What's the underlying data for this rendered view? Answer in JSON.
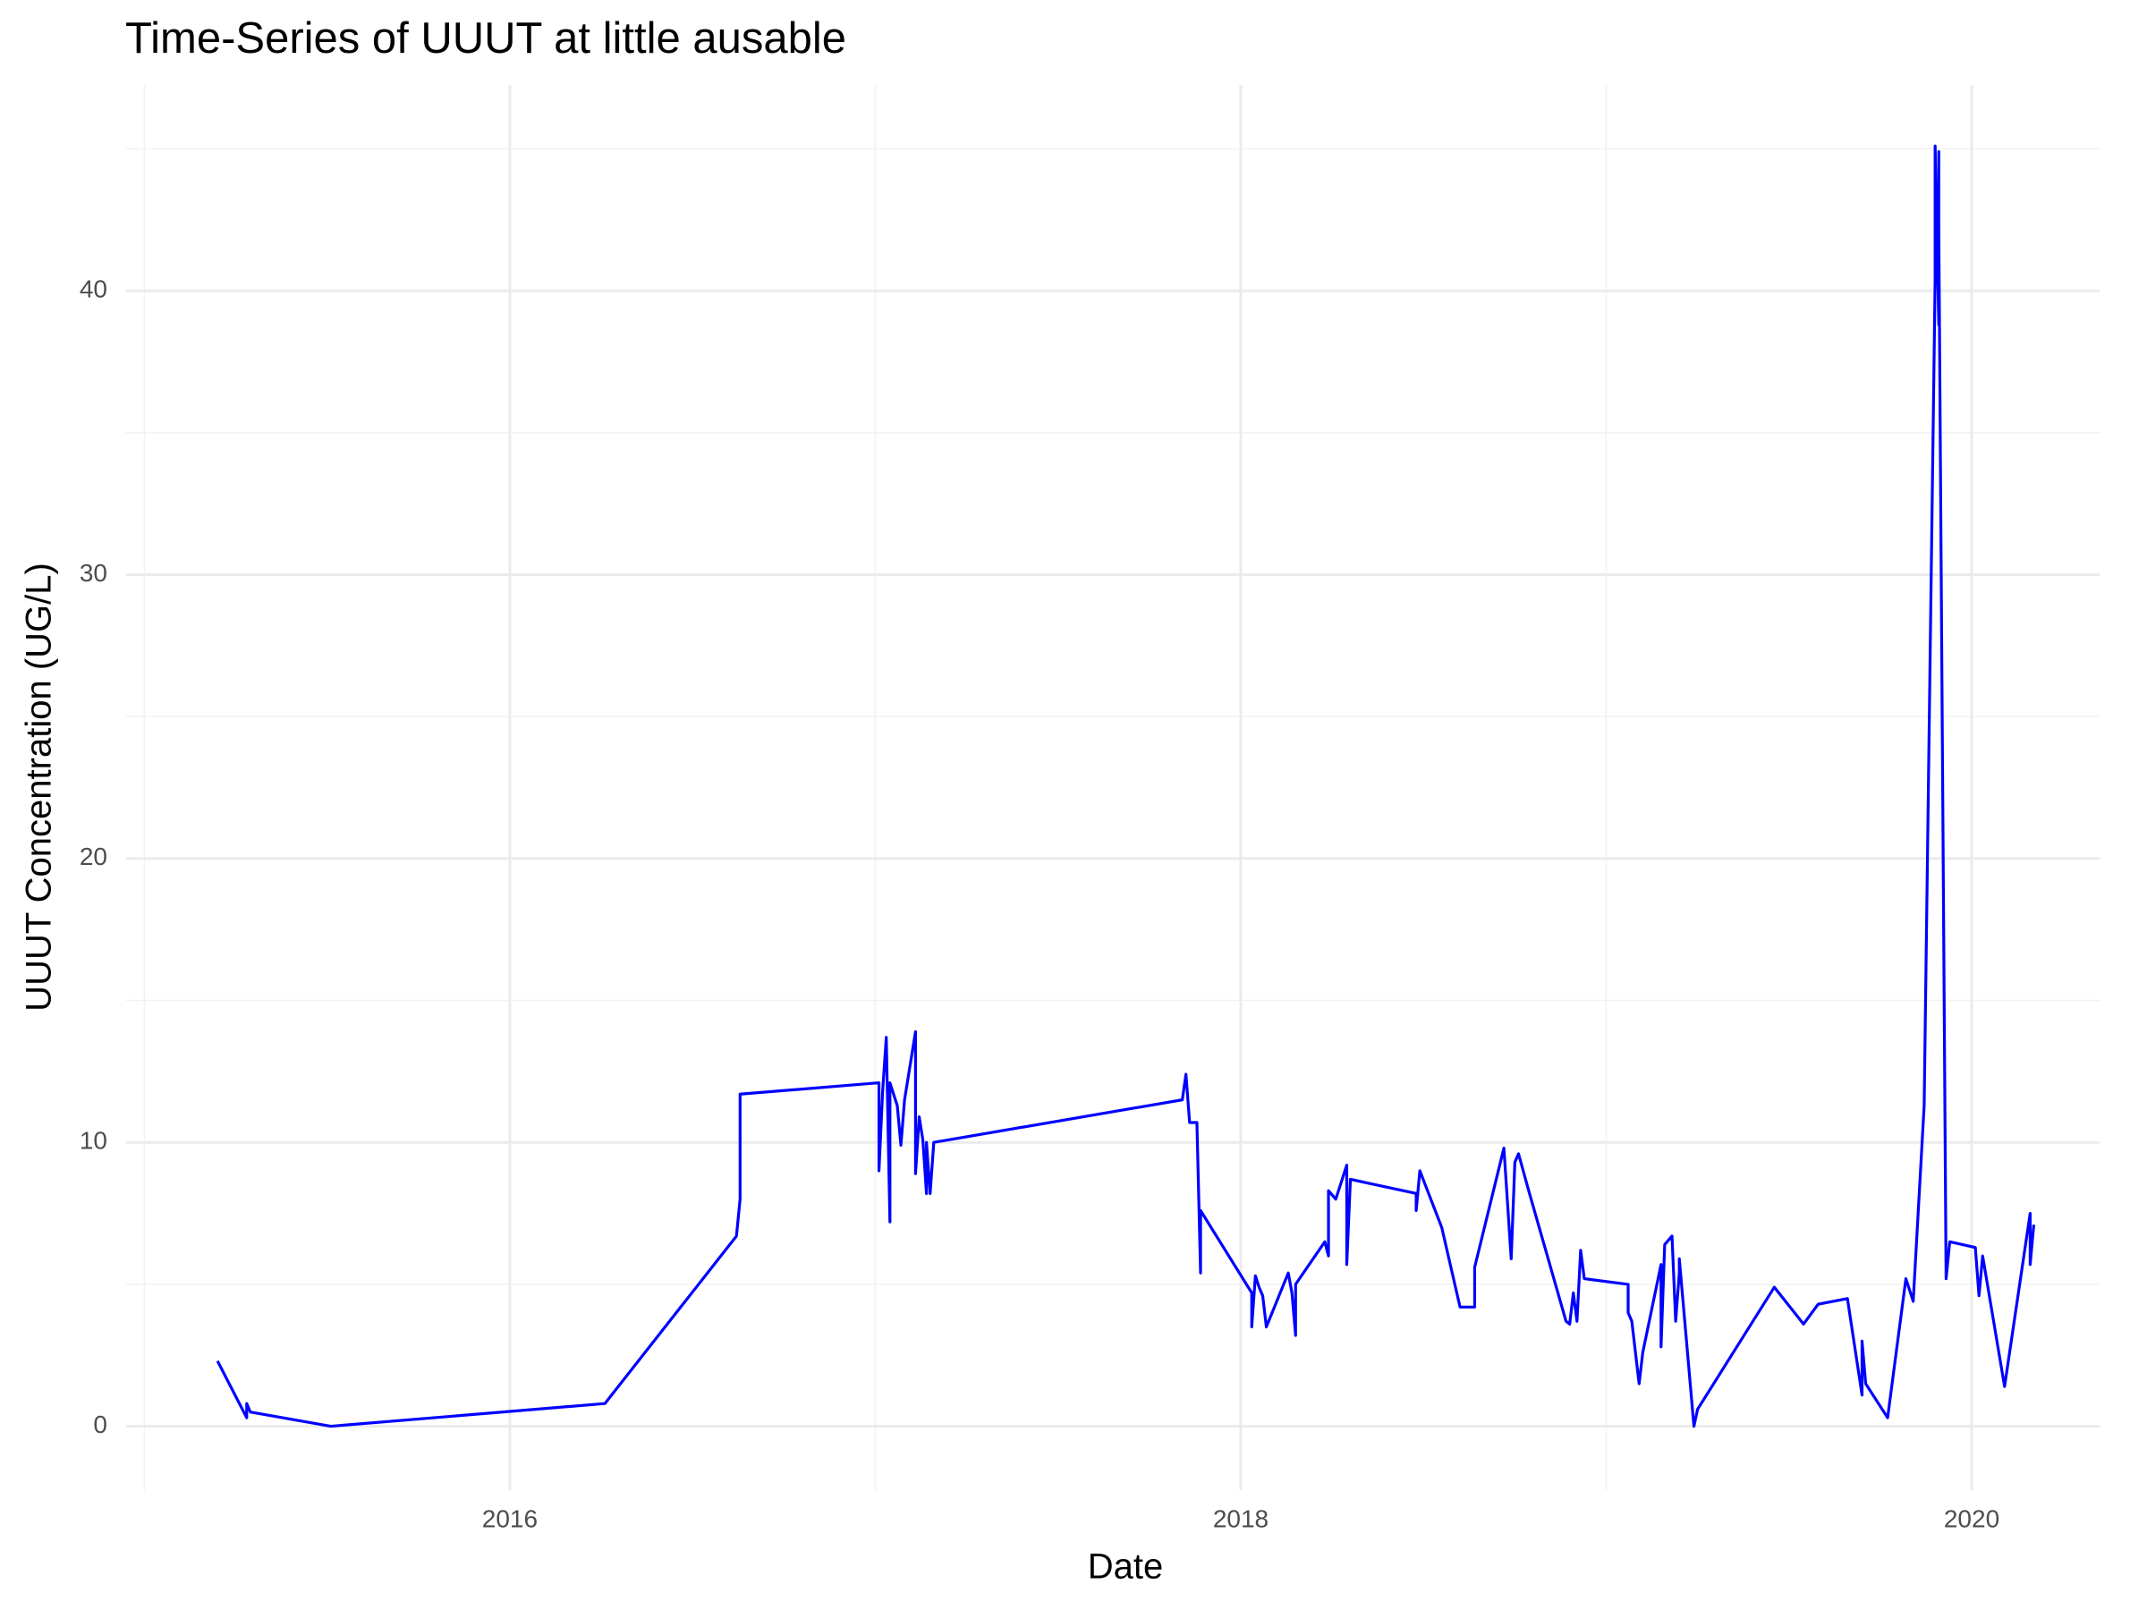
{
  "chart_data": {
    "type": "line",
    "title": "Time-Series of UUUT at little ausable",
    "x_label": "Date",
    "y_label": "UUUT Concentration (UG/L)",
    "x": [
      2015.2,
      2015.28,
      2015.28,
      2015.29,
      2015.51,
      2016.26,
      2016.62,
      2016.63,
      2016.63,
      2016.63,
      2017.01,
      2017.01,
      2017.02,
      2017.03,
      2017.04,
      2017.04,
      2017.06,
      2017.07,
      2017.08,
      2017.11,
      2017.11,
      2017.12,
      2017.13,
      2017.14,
      2017.14,
      2017.15,
      2017.16,
      2017.84,
      2017.85,
      2017.86,
      2017.88,
      2017.89,
      2017.89,
      2018.03,
      2018.03,
      2018.04,
      2018.05,
      2018.06,
      2018.07,
      2018.13,
      2018.14,
      2018.15,
      2018.15,
      2018.23,
      2018.24,
      2018.24,
      2018.26,
      2018.29,
      2018.29,
      2018.3,
      2018.48,
      2018.48,
      2018.49,
      2018.55,
      2018.6,
      2018.64,
      2018.64,
      2018.72,
      2018.74,
      2018.75,
      2018.76,
      2018.79,
      2018.89,
      2018.9,
      2018.91,
      2018.92,
      2018.93,
      2018.94,
      2019.06,
      2019.06,
      2019.07,
      2019.09,
      2019.1,
      2019.15,
      2019.15,
      2019.16,
      2019.18,
      2019.19,
      2019.2,
      2019.2,
      2019.24,
      2019.25,
      2019.46,
      2019.54,
      2019.58,
      2019.66,
      2019.7,
      2019.7,
      2019.71,
      2019.77,
      2019.82,
      2019.84,
      2019.87,
      2019.9,
      2019.9,
      2019.91,
      2019.91,
      2019.91,
      2019.93,
      2019.94,
      2020.01,
      2020.02,
      2020.03,
      2020.09,
      2020.16,
      2020.16,
      2020.17
    ],
    "series": [
      {
        "color": "#0000ff",
        "values": [
          2.3,
          0.3,
          0.8,
          0.5,
          0.0,
          0.8,
          6.7,
          8.0,
          10.5,
          11.7,
          12.1,
          9.0,
          11.8,
          13.7,
          7.2,
          12.1,
          11.3,
          9.9,
          11.5,
          13.9,
          8.9,
          10.9,
          10.1,
          8.2,
          10.0,
          8.2,
          10.0,
          11.5,
          12.4,
          10.7,
          10.7,
          5.4,
          7.6,
          4.7,
          3.5,
          5.3,
          4.9,
          4.6,
          3.5,
          5.4,
          4.7,
          3.2,
          5.0,
          6.5,
          6.0,
          8.3,
          8.0,
          9.2,
          5.7,
          8.7,
          8.2,
          7.6,
          9.0,
          7.0,
          4.2,
          4.2,
          5.6,
          9.8,
          5.9,
          9.3,
          9.6,
          8.2,
          3.7,
          3.6,
          4.7,
          3.7,
          6.2,
          5.2,
          5.0,
          4.0,
          3.7,
          1.5,
          2.6,
          5.7,
          2.8,
          6.4,
          6.7,
          3.7,
          5.4,
          5.9,
          0.0,
          0.6,
          4.9,
          3.6,
          4.3,
          4.5,
          1.1,
          3.0,
          1.5,
          0.3,
          5.2,
          4.4,
          11.3,
          40.4,
          45.1,
          38.8,
          44.9,
          42.3,
          5.2,
          6.5,
          6.3,
          4.6,
          6.0,
          1.4,
          7.5,
          5.7,
          7.1
        ]
      }
    ],
    "xlim": [
      2014.95,
      2020.35
    ],
    "xticks": [
      2016,
      2018,
      2020
    ],
    "ylim": [
      -2.25,
      47.25
    ],
    "yticks": [
      0,
      10,
      20,
      30,
      40
    ],
    "grid": true
  }
}
